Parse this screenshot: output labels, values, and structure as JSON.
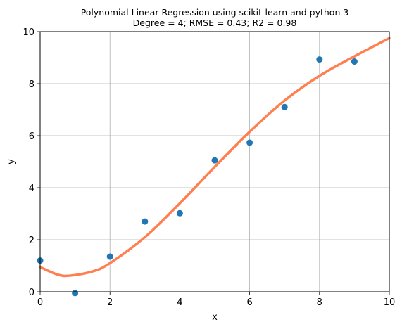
{
  "chart_data": {
    "type": "scatter",
    "title": "Polynomial Linear Regression using scikit-learn and python 3",
    "subtitle": "Degree = 4; RMSE = 0.43; R2 = 0.98",
    "xlabel": "x",
    "ylabel": "y",
    "xlim": [
      0,
      10
    ],
    "ylim": [
      0,
      10
    ],
    "xticks": [
      0,
      2,
      4,
      6,
      8,
      10
    ],
    "yticks": [
      0,
      2,
      4,
      6,
      8,
      10
    ],
    "grid": true,
    "series": [
      {
        "kind": "scatter",
        "color": "#1f77b4",
        "x": [
          0,
          1,
          2,
          3,
          4,
          5,
          6,
          7,
          8,
          9
        ],
        "y": [
          1.2,
          -0.05,
          1.35,
          2.7,
          3.02,
          5.05,
          5.73,
          7.1,
          8.93,
          8.85
        ]
      },
      {
        "kind": "line",
        "color": "#ff7f50",
        "x": [
          0,
          0.5,
          0.85,
          1.5,
          2,
          3,
          4,
          5,
          6,
          7,
          8,
          9,
          10
        ],
        "y": [
          0.95,
          0.66,
          0.62,
          0.78,
          1.1,
          2.1,
          3.4,
          4.8,
          6.15,
          7.35,
          8.3,
          9.05,
          9.75
        ]
      }
    ]
  }
}
